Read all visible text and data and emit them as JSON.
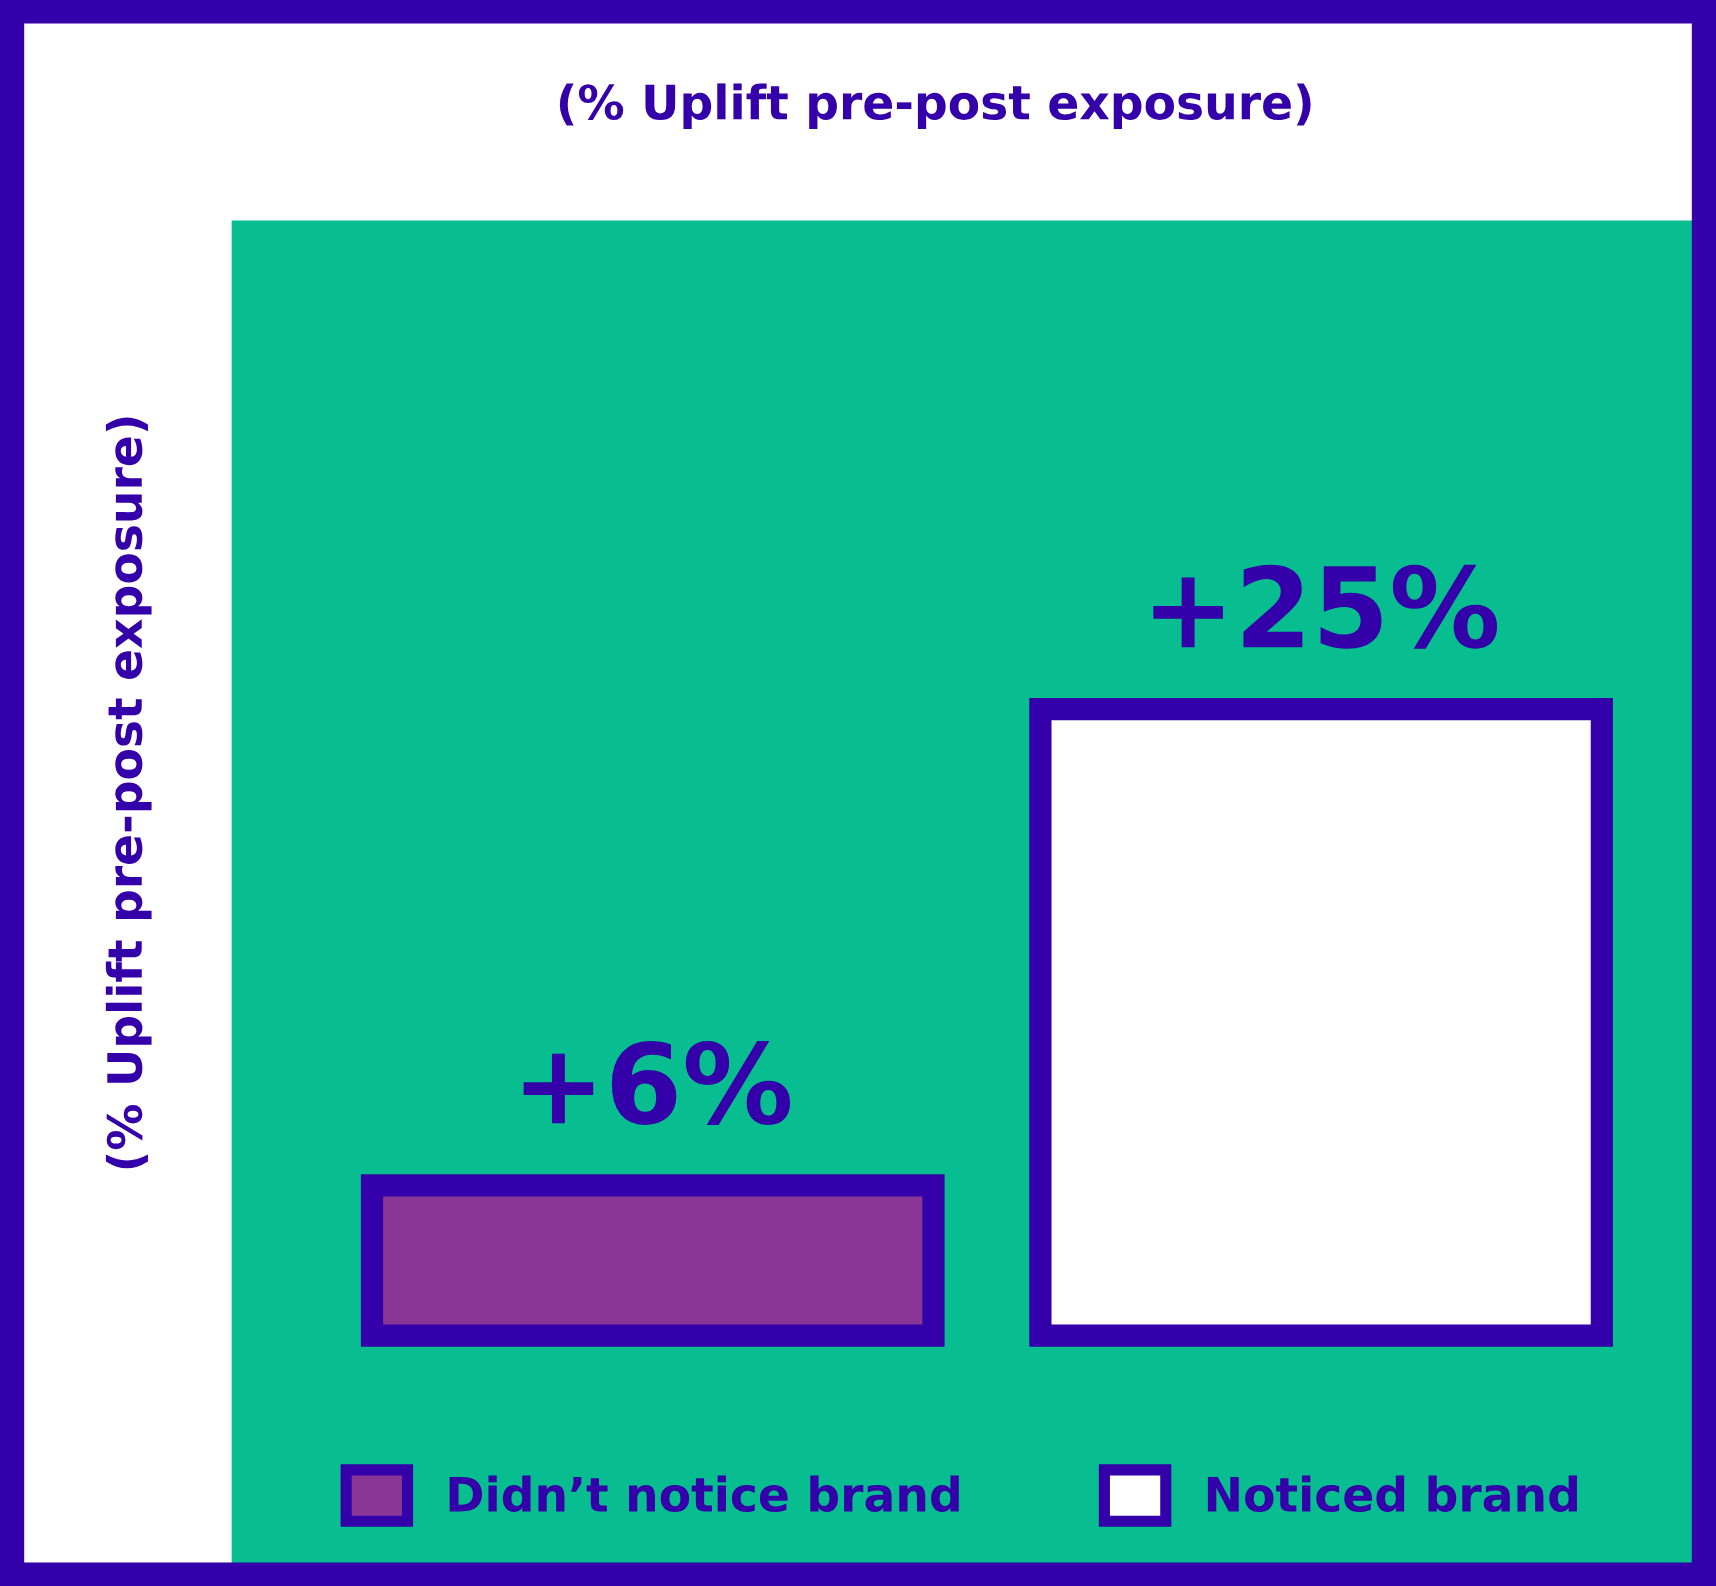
{
  "chart_data": {
    "type": "bar",
    "title": "(% Uplift pre-post exposure)",
    "ylabel": "(% Uplift pre-post exposure)",
    "categories": [
      null
    ],
    "series": [
      {
        "name": "Didn’t notice brand",
        "color": "#8a3696",
        "values": [
          6
        ],
        "value_labels": [
          "+6%"
        ]
      },
      {
        "name": "Noticed brand",
        "color": "#ffffff",
        "values": [
          25
        ],
        "value_labels": [
          "+25%"
        ]
      }
    ],
    "legend": "bottom",
    "grid": false
  }
}
